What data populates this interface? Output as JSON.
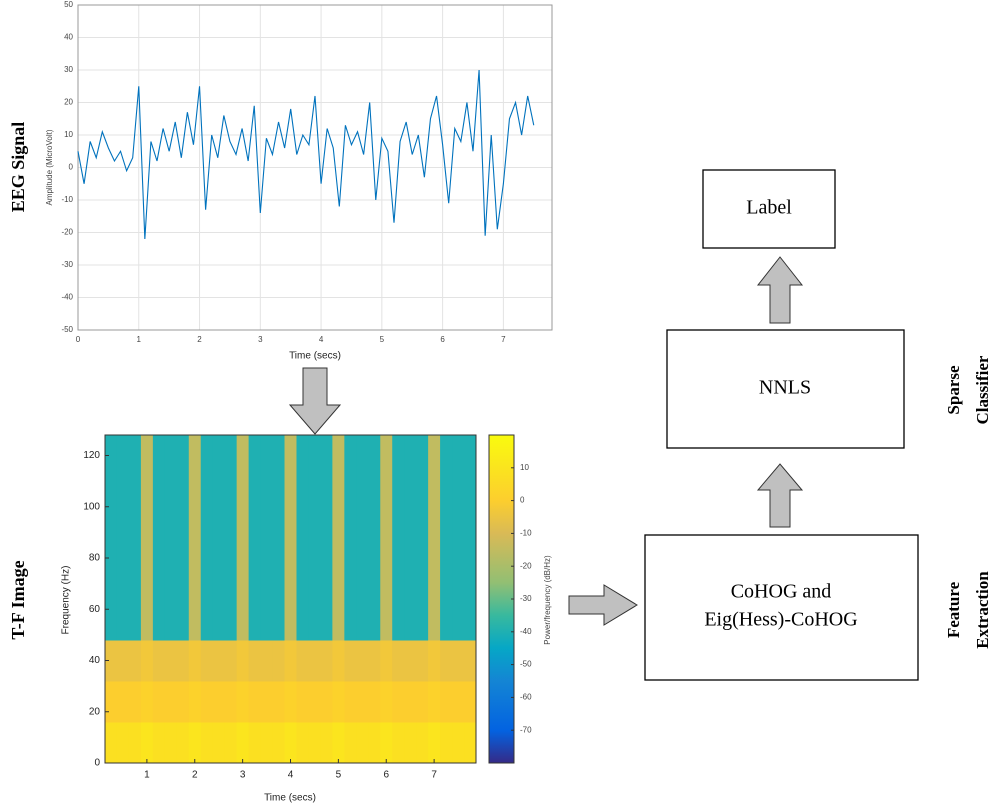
{
  "chart_data": [
    {
      "type": "line",
      "panel_label": "EEG Signal",
      "x_label": "Time (secs)",
      "y_label": "Amplitude (MicroVolt)",
      "xlim": [
        0,
        7.8
      ],
      "xticks": [
        0,
        1,
        2,
        3,
        4,
        5,
        6,
        7
      ],
      "ylim": [
        -50,
        50
      ],
      "yticks": [
        -50,
        -40,
        -30,
        -20,
        -10,
        0,
        10,
        20,
        30,
        40,
        50
      ],
      "grid": true,
      "series": [
        {
          "color": "#0072bd",
          "x": [
            0,
            0.1,
            0.2,
            0.3,
            0.4,
            0.5,
            0.6,
            0.7,
            0.8,
            0.9,
            1,
            1.1,
            1.2,
            1.3,
            1.4,
            1.5,
            1.6,
            1.7,
            1.8,
            1.9,
            2,
            2.1,
            2.2,
            2.3,
            2.4,
            2.5,
            2.6,
            2.7,
            2.8,
            2.9,
            3,
            3.1,
            3.2,
            3.3,
            3.4,
            3.5,
            3.6,
            3.7,
            3.8,
            3.9,
            4,
            4.1,
            4.2,
            4.3,
            4.4,
            4.5,
            4.6,
            4.7,
            4.8,
            4.9,
            5,
            5.1,
            5.2,
            5.3,
            5.4,
            5.5,
            5.6,
            5.7,
            5.8,
            5.9,
            6,
            6.1,
            6.2,
            6.3,
            6.4,
            6.5,
            6.6,
            6.7,
            6.8,
            6.9,
            7,
            7.1,
            7.2,
            7.3,
            7.4,
            7.5
          ],
          "values": [
            5,
            -5,
            8,
            3,
            11,
            6,
            2,
            5,
            -1,
            3,
            25,
            -22,
            8,
            2,
            12,
            5,
            14,
            3,
            17,
            7,
            25,
            -13,
            10,
            3,
            16,
            8,
            4,
            12,
            2,
            19,
            -14,
            9,
            4,
            14,
            6,
            18,
            4,
            10,
            7,
            22,
            -5,
            12,
            6,
            -12,
            13,
            7,
            11,
            4,
            20,
            -10,
            9,
            5,
            -17,
            8,
            14,
            4,
            10,
            -3,
            15,
            22,
            7,
            -11,
            12,
            8,
            20,
            5,
            30,
            -21,
            10,
            -19,
            -5,
            15,
            20,
            10,
            22,
            13
          ]
        }
      ]
    },
    {
      "type": "heatmap",
      "panel_label": "T-F Image",
      "x_label": "Time (secs)",
      "y_label": "Frequency (Hz)",
      "colorbar_label": "Power/frequency (dB/Hz)",
      "colormap": "parula",
      "clim": [
        -80,
        20
      ],
      "cticks": [
        -70,
        -60,
        -50,
        -40,
        -30,
        -20,
        -10,
        0,
        10
      ],
      "xlim": [
        0.125,
        7.875
      ],
      "xticks": [
        1,
        2,
        3,
        4,
        5,
        6,
        7
      ],
      "ylim": [
        0,
        128
      ],
      "yticks": [
        0,
        20,
        40,
        60,
        80,
        100,
        120
      ],
      "x_edges": [
        0.125,
        0.375,
        0.625,
        0.875,
        1.125,
        1.375,
        1.625,
        1.875,
        2.125,
        2.375,
        2.625,
        2.875,
        3.125,
        3.375,
        3.625,
        3.875,
        4.125,
        4.375,
        4.625,
        4.875,
        5.125,
        5.375,
        5.625,
        5.875,
        6.125,
        6.375,
        6.625,
        6.875,
        7.125,
        7.375,
        7.625,
        7.875
      ],
      "y_edges": [
        0,
        16,
        32,
        48,
        64,
        80,
        96,
        112,
        128
      ],
      "z": [
        [
          8,
          8,
          8,
          10,
          8,
          8,
          8,
          10,
          8,
          8,
          8,
          10,
          8,
          8,
          8,
          10,
          8,
          8,
          8,
          10,
          8,
          8,
          8,
          10,
          8,
          8,
          8,
          10,
          8,
          8,
          8
        ],
        [
          0,
          0,
          0,
          2,
          0,
          0,
          0,
          2,
          0,
          0,
          0,
          2,
          0,
          0,
          0,
          2,
          0,
          0,
          0,
          2,
          0,
          0,
          0,
          2,
          0,
          0,
          0,
          2,
          0,
          0,
          0
        ],
        [
          -5,
          -5,
          -5,
          -3,
          -5,
          -5,
          -5,
          -3,
          -5,
          -5,
          -5,
          -3,
          -5,
          -5,
          -5,
          -3,
          -5,
          -5,
          -5,
          -3,
          -5,
          -5,
          -5,
          -3,
          -5,
          -5,
          -5,
          -3,
          -5,
          -5,
          -5
        ],
        [
          -40,
          -40,
          -40,
          -15,
          -40,
          -40,
          -40,
          -15,
          -40,
          -40,
          -40,
          -15,
          -40,
          -40,
          -40,
          -15,
          -40,
          -40,
          -40,
          -15,
          -40,
          -40,
          -40,
          -15,
          -40,
          -40,
          -40,
          -15,
          -40,
          -40,
          -40
        ],
        [
          -40,
          -40,
          -40,
          -15,
          -40,
          -40,
          -40,
          -15,
          -40,
          -40,
          -40,
          -15,
          -40,
          -40,
          -40,
          -15,
          -40,
          -40,
          -40,
          -15,
          -40,
          -40,
          -40,
          -15,
          -40,
          -40,
          -40,
          -15,
          -40,
          -40,
          -40
        ],
        [
          -40,
          -40,
          -40,
          -15,
          -40,
          -40,
          -40,
          -15,
          -40,
          -40,
          -40,
          -15,
          -40,
          -40,
          -40,
          -15,
          -40,
          -40,
          -40,
          -15,
          -40,
          -40,
          -40,
          -15,
          -40,
          -40,
          -40,
          -15,
          -40,
          -40,
          -40
        ],
        [
          -40,
          -40,
          -40,
          -15,
          -40,
          -40,
          -40,
          -15,
          -40,
          -40,
          -40,
          -15,
          -40,
          -40,
          -40,
          -15,
          -40,
          -40,
          -40,
          -15,
          -40,
          -40,
          -40,
          -15,
          -40,
          -40,
          -40,
          -15,
          -40,
          -40,
          -40
        ],
        [
          -40,
          -40,
          -40,
          -15,
          -40,
          -40,
          -40,
          -15,
          -40,
          -40,
          -40,
          -15,
          -40,
          -40,
          -40,
          -15,
          -40,
          -40,
          -40,
          -15,
          -40,
          -40,
          -40,
          -15,
          -40,
          -40,
          -40,
          -15,
          -40,
          -40,
          -40
        ]
      ]
    }
  ],
  "nodes": [
    {
      "label": [
        "Label"
      ]
    },
    {
      "label": [
        "NNLS"
      ]
    },
    {
      "label": [
        "CoHOG and",
        "Eig(Hess)-CoHOG"
      ]
    }
  ],
  "side_labels": [
    {
      "lines": [
        "Sparse",
        "Classifier"
      ]
    },
    {
      "lines": [
        "Feature",
        "Extraction"
      ]
    }
  ]
}
